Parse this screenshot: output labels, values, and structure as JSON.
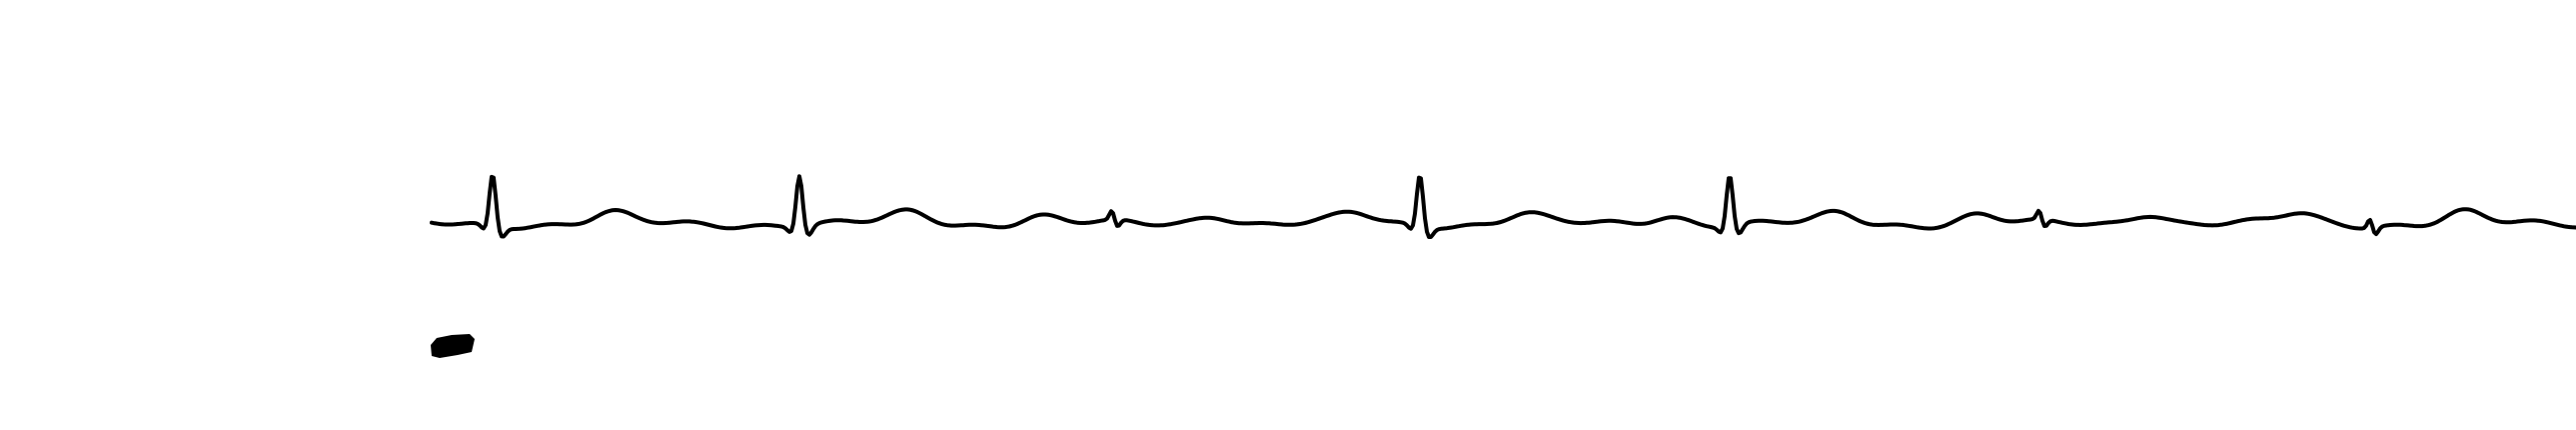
{
  "recording": {
    "stroke_color": "#000000",
    "background_color": "#ffffff",
    "description_visible_text": "",
    "waveform": "ecg-rhythm-strip",
    "beats_visible": 5,
    "marker": "calibration-mark"
  }
}
